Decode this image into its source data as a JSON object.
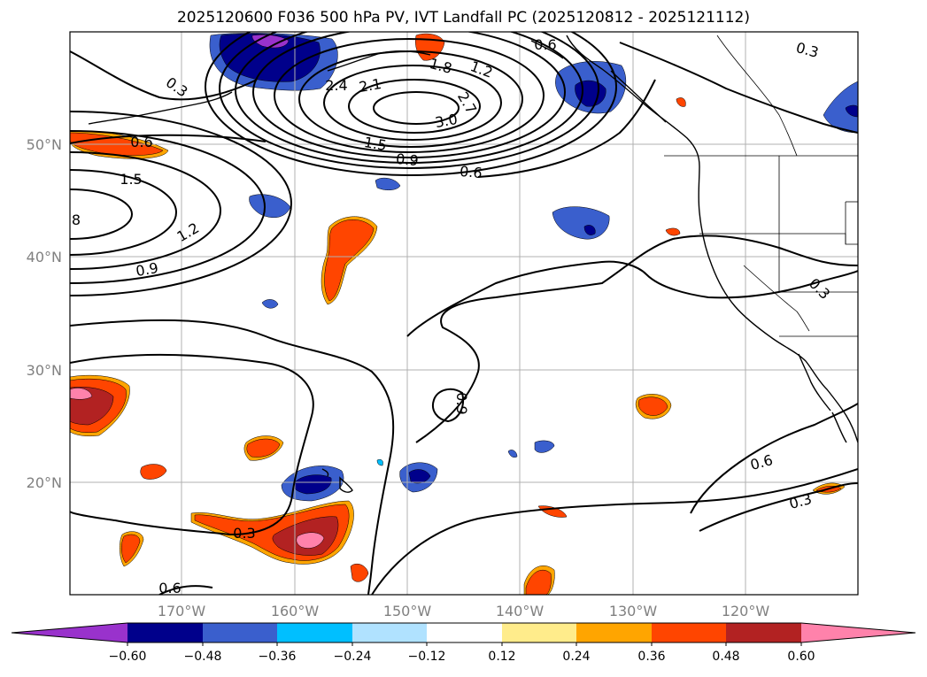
{
  "title": "2025120600 F036 500 hPa PV, IVT Landfall PC (2025120812 - 2025121112)",
  "lat_labels": [
    "50°N",
    "40°N",
    "30°N",
    "20°N"
  ],
  "lon_labels": [
    "170°W",
    "160°W",
    "150°W",
    "140°W",
    "130°W",
    "120°W"
  ],
  "colorbar": {
    "tick_labels": [
      "−0.60",
      "−0.48",
      "−0.36",
      "−0.24",
      "−0.12",
      "0.12",
      "0.24",
      "0.36",
      "0.48",
      "0.60"
    ],
    "colors": [
      "#9932cc",
      "#00008b",
      "#3a5fcd",
      "#00bfff",
      "#b0e2ff",
      "#ffffff",
      "#ffec8b",
      "#ffa500",
      "#ff4500",
      "#b22222",
      "#ff82ab"
    ]
  },
  "contour_labels": [
    {
      "text": "0.3",
      "rot": 35
    },
    {
      "text": "0.6",
      "rot": 0
    },
    {
      "text": "1.5",
      "rot": 0
    },
    {
      "text": "8",
      "rot": 0
    },
    {
      "text": "1.2",
      "rot": -30
    },
    {
      "text": "0.9",
      "rot": -10
    },
    {
      "text": "2.4",
      "rot": 0
    },
    {
      "text": "2.1",
      "rot": -10
    },
    {
      "text": "1.8",
      "rot": 15
    },
    {
      "text": "1.2",
      "rot": 20
    },
    {
      "text": "3.0",
      "rot": -10
    },
    {
      "text": "2.7",
      "rot": 60
    },
    {
      "text": "1.5",
      "rot": 10
    },
    {
      "text": "0.9",
      "rot": 5
    },
    {
      "text": "0.6",
      "rot": 5
    },
    {
      "text": "0.3",
      "rot": 15
    },
    {
      "text": "0.3",
      "rot": 45
    },
    {
      "text": "0.9",
      "rot": 90
    },
    {
      "text": "0.6",
      "rot": -15
    },
    {
      "text": "0.3",
      "rot": -15
    },
    {
      "text": "0.3",
      "rot": 0
    },
    {
      "text": "0.6",
      "rot": 0
    },
    {
      "text": "0.6",
      "rot": 0
    },
    {
      "text": "0.9",
      "rot": 0
    }
  ]
}
